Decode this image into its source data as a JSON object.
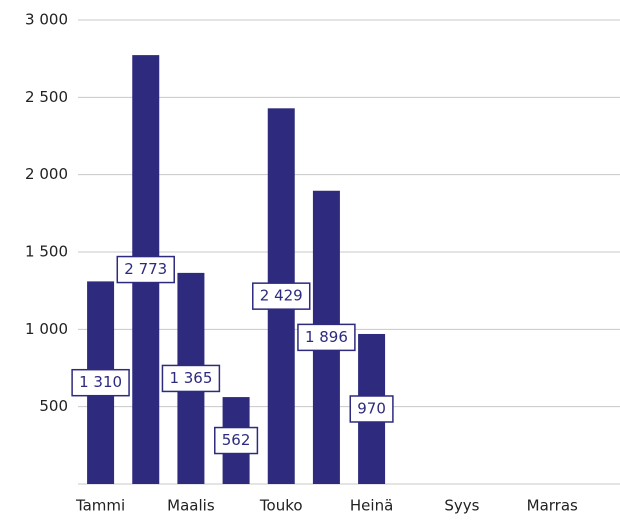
{
  "chart_data": {
    "type": "bar",
    "categories": [
      "Tammi",
      null,
      "Maalis",
      null,
      "Touko",
      null,
      "Heinä",
      null,
      "Syys",
      null,
      "Marras",
      null
    ],
    "values": [
      1310,
      2773,
      1365,
      562,
      2429,
      1896,
      970,
      null,
      null,
      null,
      null,
      null
    ],
    "value_labels": [
      "1 310",
      "2 773",
      "1 365",
      "562",
      "2 429",
      "1 896",
      "970",
      null,
      null,
      null,
      null,
      null
    ],
    "color": "#2e2a7e",
    "ylim": [
      0,
      3000
    ],
    "yticks": [
      500,
      {
        "value": 1000,
        "label": "1 000"
      },
      {
        "value": 1500,
        "label": "1 500"
      },
      {
        "value": 2000,
        "label": "2 000"
      },
      {
        "value": 2500,
        "label": "2 500"
      },
      {
        "value": 3000,
        "label": "3 000"
      }
    ],
    "grid": true
  }
}
